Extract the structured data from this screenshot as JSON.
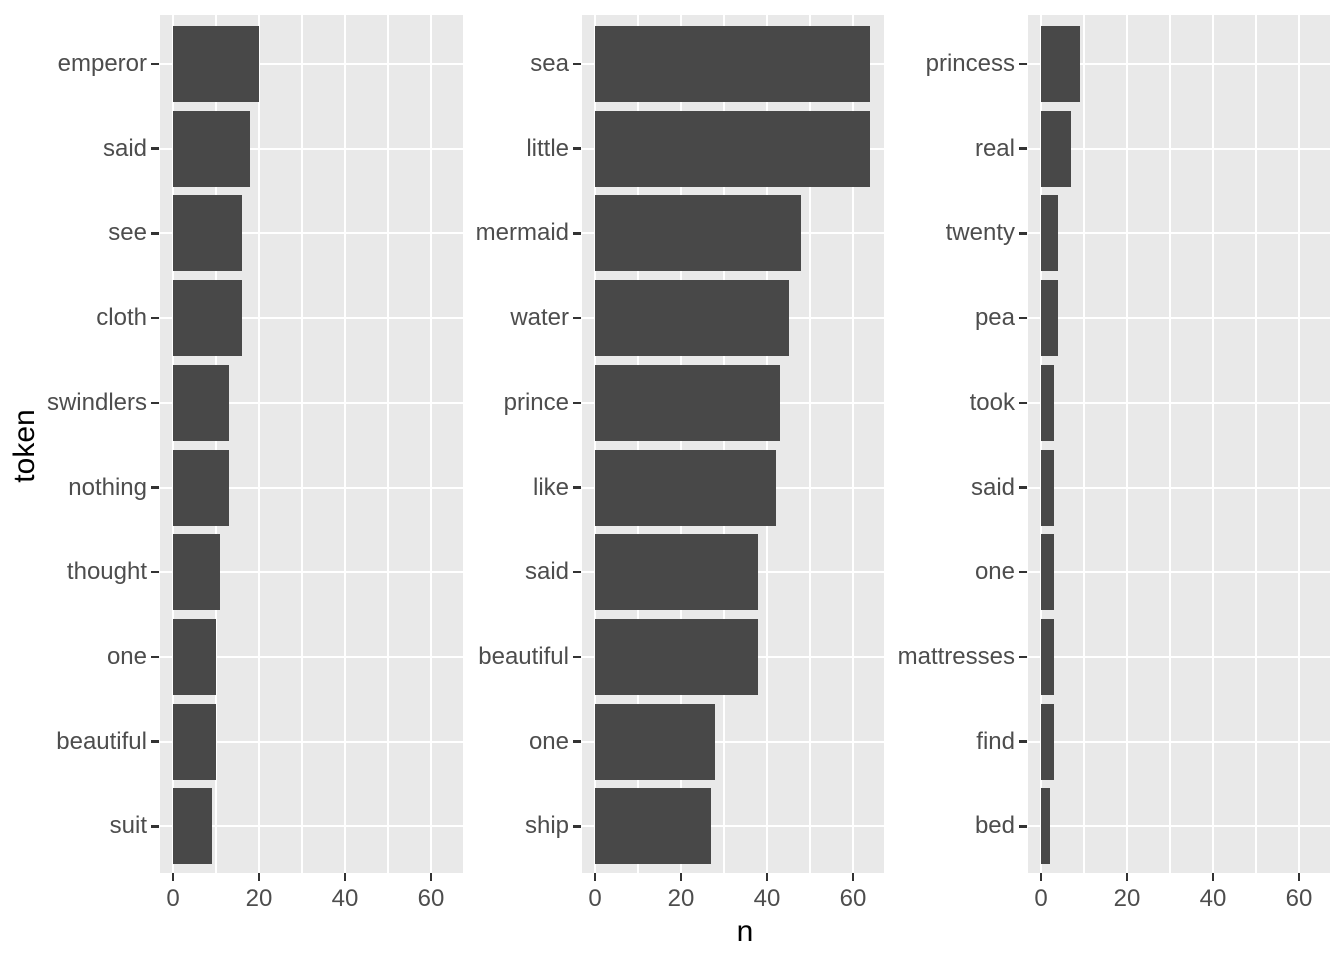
{
  "chart_data": {
    "type": "bar",
    "orientation": "horizontal",
    "title": "",
    "xlabel": "n",
    "ylabel": "token",
    "x_ticks": [
      0,
      20,
      40,
      60
    ],
    "x_minor_ticks": [
      10,
      30,
      50
    ],
    "xlim": [
      -3,
      67.2
    ],
    "grid": "on",
    "legend": "none",
    "facet_layout": "3 columns, free y scales, no strip labels",
    "panels": [
      {
        "categories": [
          "emperor",
          "said",
          "see",
          "cloth",
          "swindlers",
          "nothing",
          "thought",
          "one",
          "beautiful",
          "suit"
        ],
        "values": [
          20,
          18,
          16,
          16,
          13,
          13,
          11,
          10,
          10,
          9
        ]
      },
      {
        "categories": [
          "sea",
          "little",
          "mermaid",
          "water",
          "prince",
          "like",
          "said",
          "beautiful",
          "one",
          "ship"
        ],
        "values": [
          64,
          64,
          48,
          45,
          43,
          42,
          38,
          38,
          28,
          27
        ]
      },
      {
        "categories": [
          "princess",
          "real",
          "twenty",
          "pea",
          "took",
          "said",
          "one",
          "mattresses",
          "find",
          "bed"
        ],
        "values": [
          9,
          7,
          4,
          4,
          3,
          3,
          3,
          3,
          3,
          2
        ]
      }
    ],
    "colors": {
      "bar": "#484848",
      "panel_background": "#E9E9E9",
      "gridline": "#FFFFFF",
      "axis_text": "#4D4D4D",
      "axis_title": "#000000",
      "tick_mark": "#333333",
      "background": "#FFFFFF"
    }
  }
}
